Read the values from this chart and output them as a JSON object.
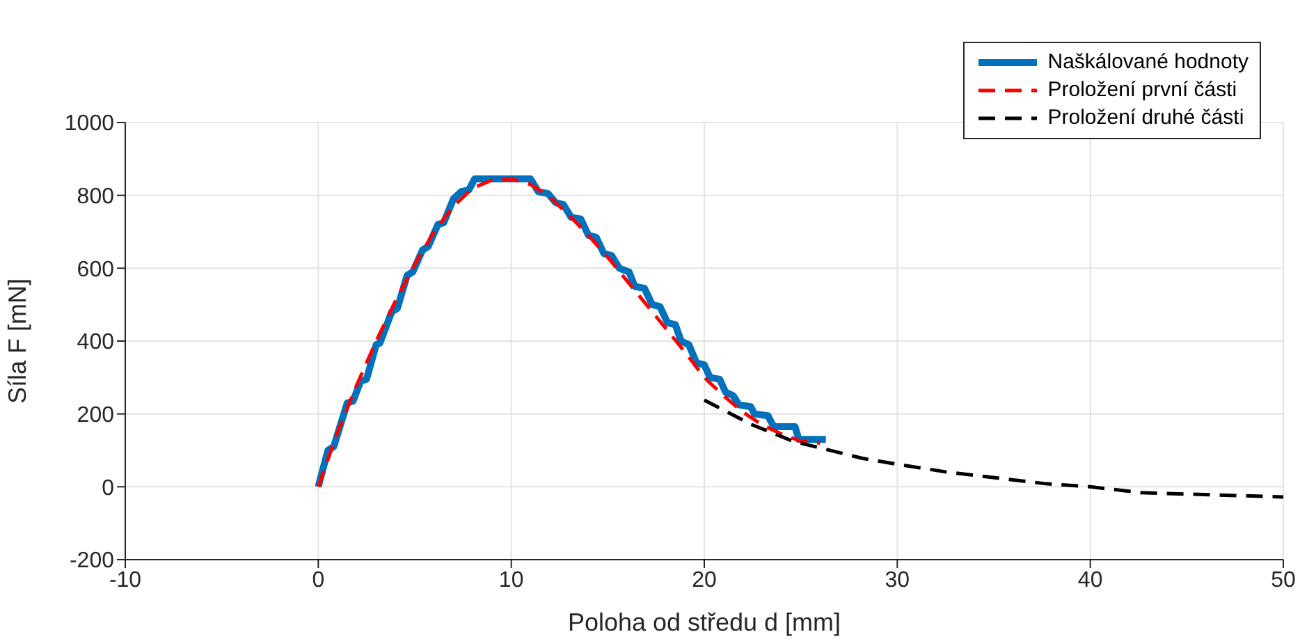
{
  "chart_data": {
    "type": "line",
    "xlabel": "Poloha od středu d [mm]",
    "ylabel": "Síla F [mN]",
    "xlim": [
      -10,
      50
    ],
    "xticks": [
      -10,
      0,
      10,
      20,
      30,
      40,
      50
    ],
    "ylim": [
      -200,
      1000
    ],
    "yticks": [
      -200,
      0,
      200,
      400,
      600,
      800,
      1000
    ],
    "grid": true,
    "legend": "top right",
    "marker": "none",
    "series": [
      {
        "name": "Naškálované hodnoty",
        "color": "#0072bd",
        "line_style": "solid",
        "x": [
          0,
          0.5,
          0.8,
          1.5,
          1.8,
          2.2,
          2.5,
          3.0,
          3.2,
          3.8,
          4.1,
          4.6,
          4.9,
          5.4,
          5.7,
          6.2,
          6.5,
          7.0,
          7.4,
          7.8,
          8.1,
          11.0,
          11.4,
          11.9,
          12.3,
          12.7,
          13.1,
          13.6,
          14.0,
          14.4,
          14.8,
          15.2,
          15.6,
          16.1,
          16.4,
          16.9,
          17.3,
          17.7,
          18.1,
          18.5,
          18.8,
          19.2,
          19.6,
          20.0,
          20.3,
          20.8,
          21.1,
          21.5,
          21.8,
          22.4,
          22.6,
          23.3,
          23.6,
          24.7,
          24.9,
          26.3
        ],
        "values": [
          0,
          100,
          110,
          230,
          235,
          290,
          295,
          390,
          395,
          480,
          490,
          580,
          590,
          650,
          660,
          720,
          725,
          790,
          810,
          815,
          845,
          845,
          810,
          805,
          780,
          775,
          740,
          735,
          690,
          685,
          640,
          635,
          600,
          590,
          550,
          545,
          500,
          495,
          450,
          445,
          400,
          390,
          340,
          335,
          300,
          295,
          260,
          250,
          225,
          220,
          200,
          195,
          165,
          165,
          130,
          130
        ]
      },
      {
        "name": "Proložení první části",
        "color": "#ff0000",
        "line_style": "dashed",
        "x": [
          0,
          1,
          2,
          3,
          4,
          5,
          6,
          7,
          8,
          9,
          10,
          11,
          12,
          13,
          14,
          15,
          16,
          17,
          18,
          19,
          20,
          21,
          22,
          23,
          24,
          25,
          26
        ],
        "values": [
          0,
          150,
          280,
          400,
          510,
          610,
          700,
          770,
          820,
          842,
          845,
          830,
          795,
          745,
          690,
          630,
          565,
          500,
          435,
          370,
          300,
          250,
          205,
          170,
          145,
          125,
          120
        ]
      },
      {
        "name": "Proložení druhé části",
        "color": "#000000",
        "line_style": "dashed",
        "x": [
          20,
          22.4,
          24.6,
          28.2,
          30,
          32.5,
          37.6,
          40,
          42.6,
          45,
          50
        ],
        "values": [
          238,
          172,
          125,
          78,
          62,
          41,
          9,
          0,
          -16,
          -20,
          -28
        ]
      }
    ]
  }
}
